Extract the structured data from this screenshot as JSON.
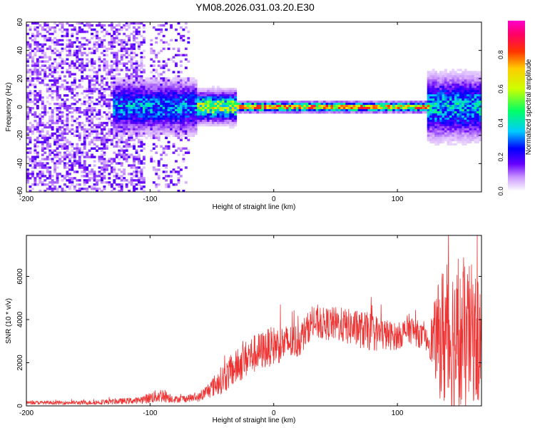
{
  "title": "YM08.2026.031.03.20.E30",
  "chart_data": [
    {
      "type": "heatmap",
      "title": "YM08.2026.031.03.20.E30",
      "xlabel": "Height of straight line (km)",
      "ylabel": "Frequency (Hz)",
      "xlim": [
        -200,
        168
      ],
      "ylim": [
        -60,
        60
      ],
      "xticks": [
        -200,
        -100,
        0,
        100
      ],
      "yticks": [
        -60,
        -40,
        -20,
        0,
        20,
        40,
        60
      ],
      "colorbar": {
        "label": "Normalized spectral amplitude",
        "range": [
          0,
          1
        ],
        "ticks": [
          0.0,
          0.2,
          0.4,
          0.6,
          0.8
        ],
        "colormap": [
          "#ffffff",
          "#cc99ff",
          "#6600ff",
          "#0000ff",
          "#00ccff",
          "#00ff66",
          "#ccff00",
          "#ffcc00",
          "#ff3300",
          "#ff0066",
          "#ff00cc"
        ]
      },
      "regions": [
        {
          "x": [
            -200,
            -105
          ],
          "freq_spread_hz": 60,
          "description": "broadband noise"
        },
        {
          "x": [
            -100,
            -68
          ],
          "freq_spread_hz": 60,
          "description": "weak broadband noise"
        },
        {
          "x": [
            -130,
            -62
          ],
          "freq_spread_hz": 10,
          "peak_amp": 0.45
        },
        {
          "x": [
            -62,
            -30
          ],
          "freq_spread_hz": 6,
          "peak_amp": 0.7
        },
        {
          "x": [
            -30,
            125
          ],
          "freq_spread_hz": 2,
          "peak_amp": 0.9
        },
        {
          "x": [
            125,
            168
          ],
          "freq_spread_hz": 12,
          "peak_amp": 0.5
        }
      ]
    },
    {
      "type": "line",
      "xlabel": "Height of straight line (km)",
      "ylabel": "SNR (10 * v/v)",
      "xlim": [
        -200,
        168
      ],
      "ylim": [
        0,
        7900
      ],
      "xticks": [
        -200,
        -100,
        0,
        100
      ],
      "yticks": [
        0,
        2000,
        4000,
        6000
      ],
      "color": "#ee3333",
      "series": [
        {
          "name": "SNR",
          "envelope_x": [
            -200,
            -150,
            -110,
            -90,
            -80,
            -60,
            -40,
            -20,
            0,
            20,
            30,
            50,
            80,
            100,
            110,
            125,
            135,
            140,
            150,
            160,
            168
          ],
          "envelope_mean": [
            150,
            150,
            250,
            500,
            300,
            400,
            1300,
            2300,
            2800,
            3000,
            3800,
            3800,
            3400,
            3200,
            3600,
            3000,
            3200,
            3300,
            2800,
            3400,
            2800
          ],
          "envelope_amp": [
            80,
            100,
            150,
            350,
            150,
            200,
            700,
            900,
            900,
            800,
            700,
            800,
            900,
            600,
            700,
            500,
            3000,
            4000,
            3600,
            3200,
            3000
          ]
        }
      ]
    }
  ]
}
